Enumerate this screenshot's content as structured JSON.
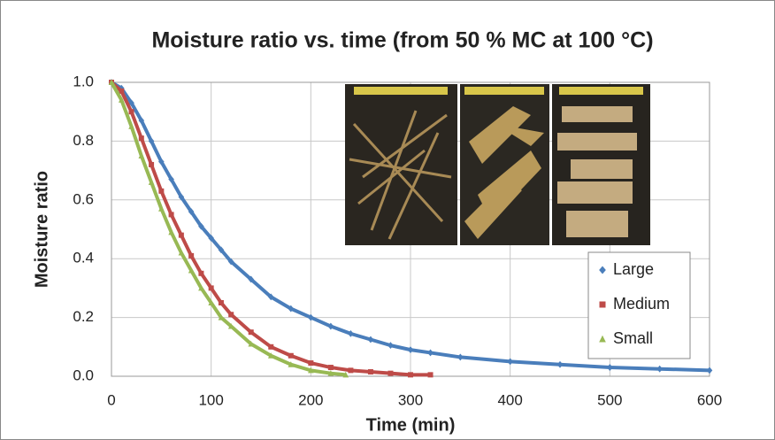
{
  "chart_data": {
    "type": "scatter",
    "title": "Moisture ratio vs. time (from 50 % MC at 100 °C)",
    "x_label": "Time (min)",
    "y_label": "Moisture ratio",
    "xlim": [
      0,
      600
    ],
    "xticks": [
      0,
      100,
      200,
      300,
      400,
      500,
      600
    ],
    "ylim": [
      0,
      1.0
    ],
    "yticks": [
      {
        "value": 0,
        "label": "0.0"
      },
      {
        "value": 0.2,
        "label": "0.2"
      },
      {
        "value": 0.4,
        "label": "0.4"
      },
      {
        "value": 0.6,
        "label": "0.6"
      },
      {
        "value": 0.8,
        "label": "0.8"
      },
      {
        "value": 1.0,
        "label": "1.0"
      }
    ],
    "grid": true,
    "legend": "right",
    "series": [
      {
        "name": "Large",
        "color": "#4a7ebb",
        "marker": "diamond",
        "x": [
          0,
          10,
          20,
          30,
          40,
          50,
          60,
          70,
          80,
          90,
          100,
          110,
          120,
          140,
          160,
          180,
          200,
          220,
          240,
          260,
          280,
          300,
          320,
          350,
          400,
          450,
          500,
          550,
          600
        ],
        "values": [
          1.0,
          0.98,
          0.93,
          0.87,
          0.8,
          0.73,
          0.67,
          0.61,
          0.56,
          0.51,
          0.47,
          0.43,
          0.39,
          0.33,
          0.27,
          0.23,
          0.2,
          0.17,
          0.145,
          0.125,
          0.105,
          0.09,
          0.08,
          0.065,
          0.05,
          0.04,
          0.03,
          0.025,
          0.02
        ]
      },
      {
        "name": "Medium",
        "color": "#be4b48",
        "marker": "square",
        "x": [
          0,
          10,
          20,
          30,
          40,
          50,
          60,
          70,
          80,
          90,
          100,
          110,
          120,
          140,
          160,
          180,
          200,
          220,
          240,
          260,
          280,
          300,
          320
        ],
        "values": [
          1.0,
          0.97,
          0.9,
          0.81,
          0.72,
          0.63,
          0.55,
          0.48,
          0.41,
          0.35,
          0.3,
          0.25,
          0.21,
          0.15,
          0.1,
          0.07,
          0.045,
          0.03,
          0.02,
          0.015,
          0.01,
          0.005,
          0.005
        ]
      },
      {
        "name": "Small",
        "color": "#98b954",
        "marker": "triangle",
        "x": [
          0,
          10,
          20,
          30,
          40,
          50,
          60,
          70,
          80,
          90,
          100,
          110,
          120,
          140,
          160,
          180,
          200,
          220,
          235
        ],
        "values": [
          1.0,
          0.94,
          0.85,
          0.75,
          0.66,
          0.57,
          0.49,
          0.42,
          0.36,
          0.3,
          0.25,
          0.2,
          0.17,
          0.11,
          0.07,
          0.04,
          0.02,
          0.01,
          0.005
        ]
      }
    ]
  }
}
